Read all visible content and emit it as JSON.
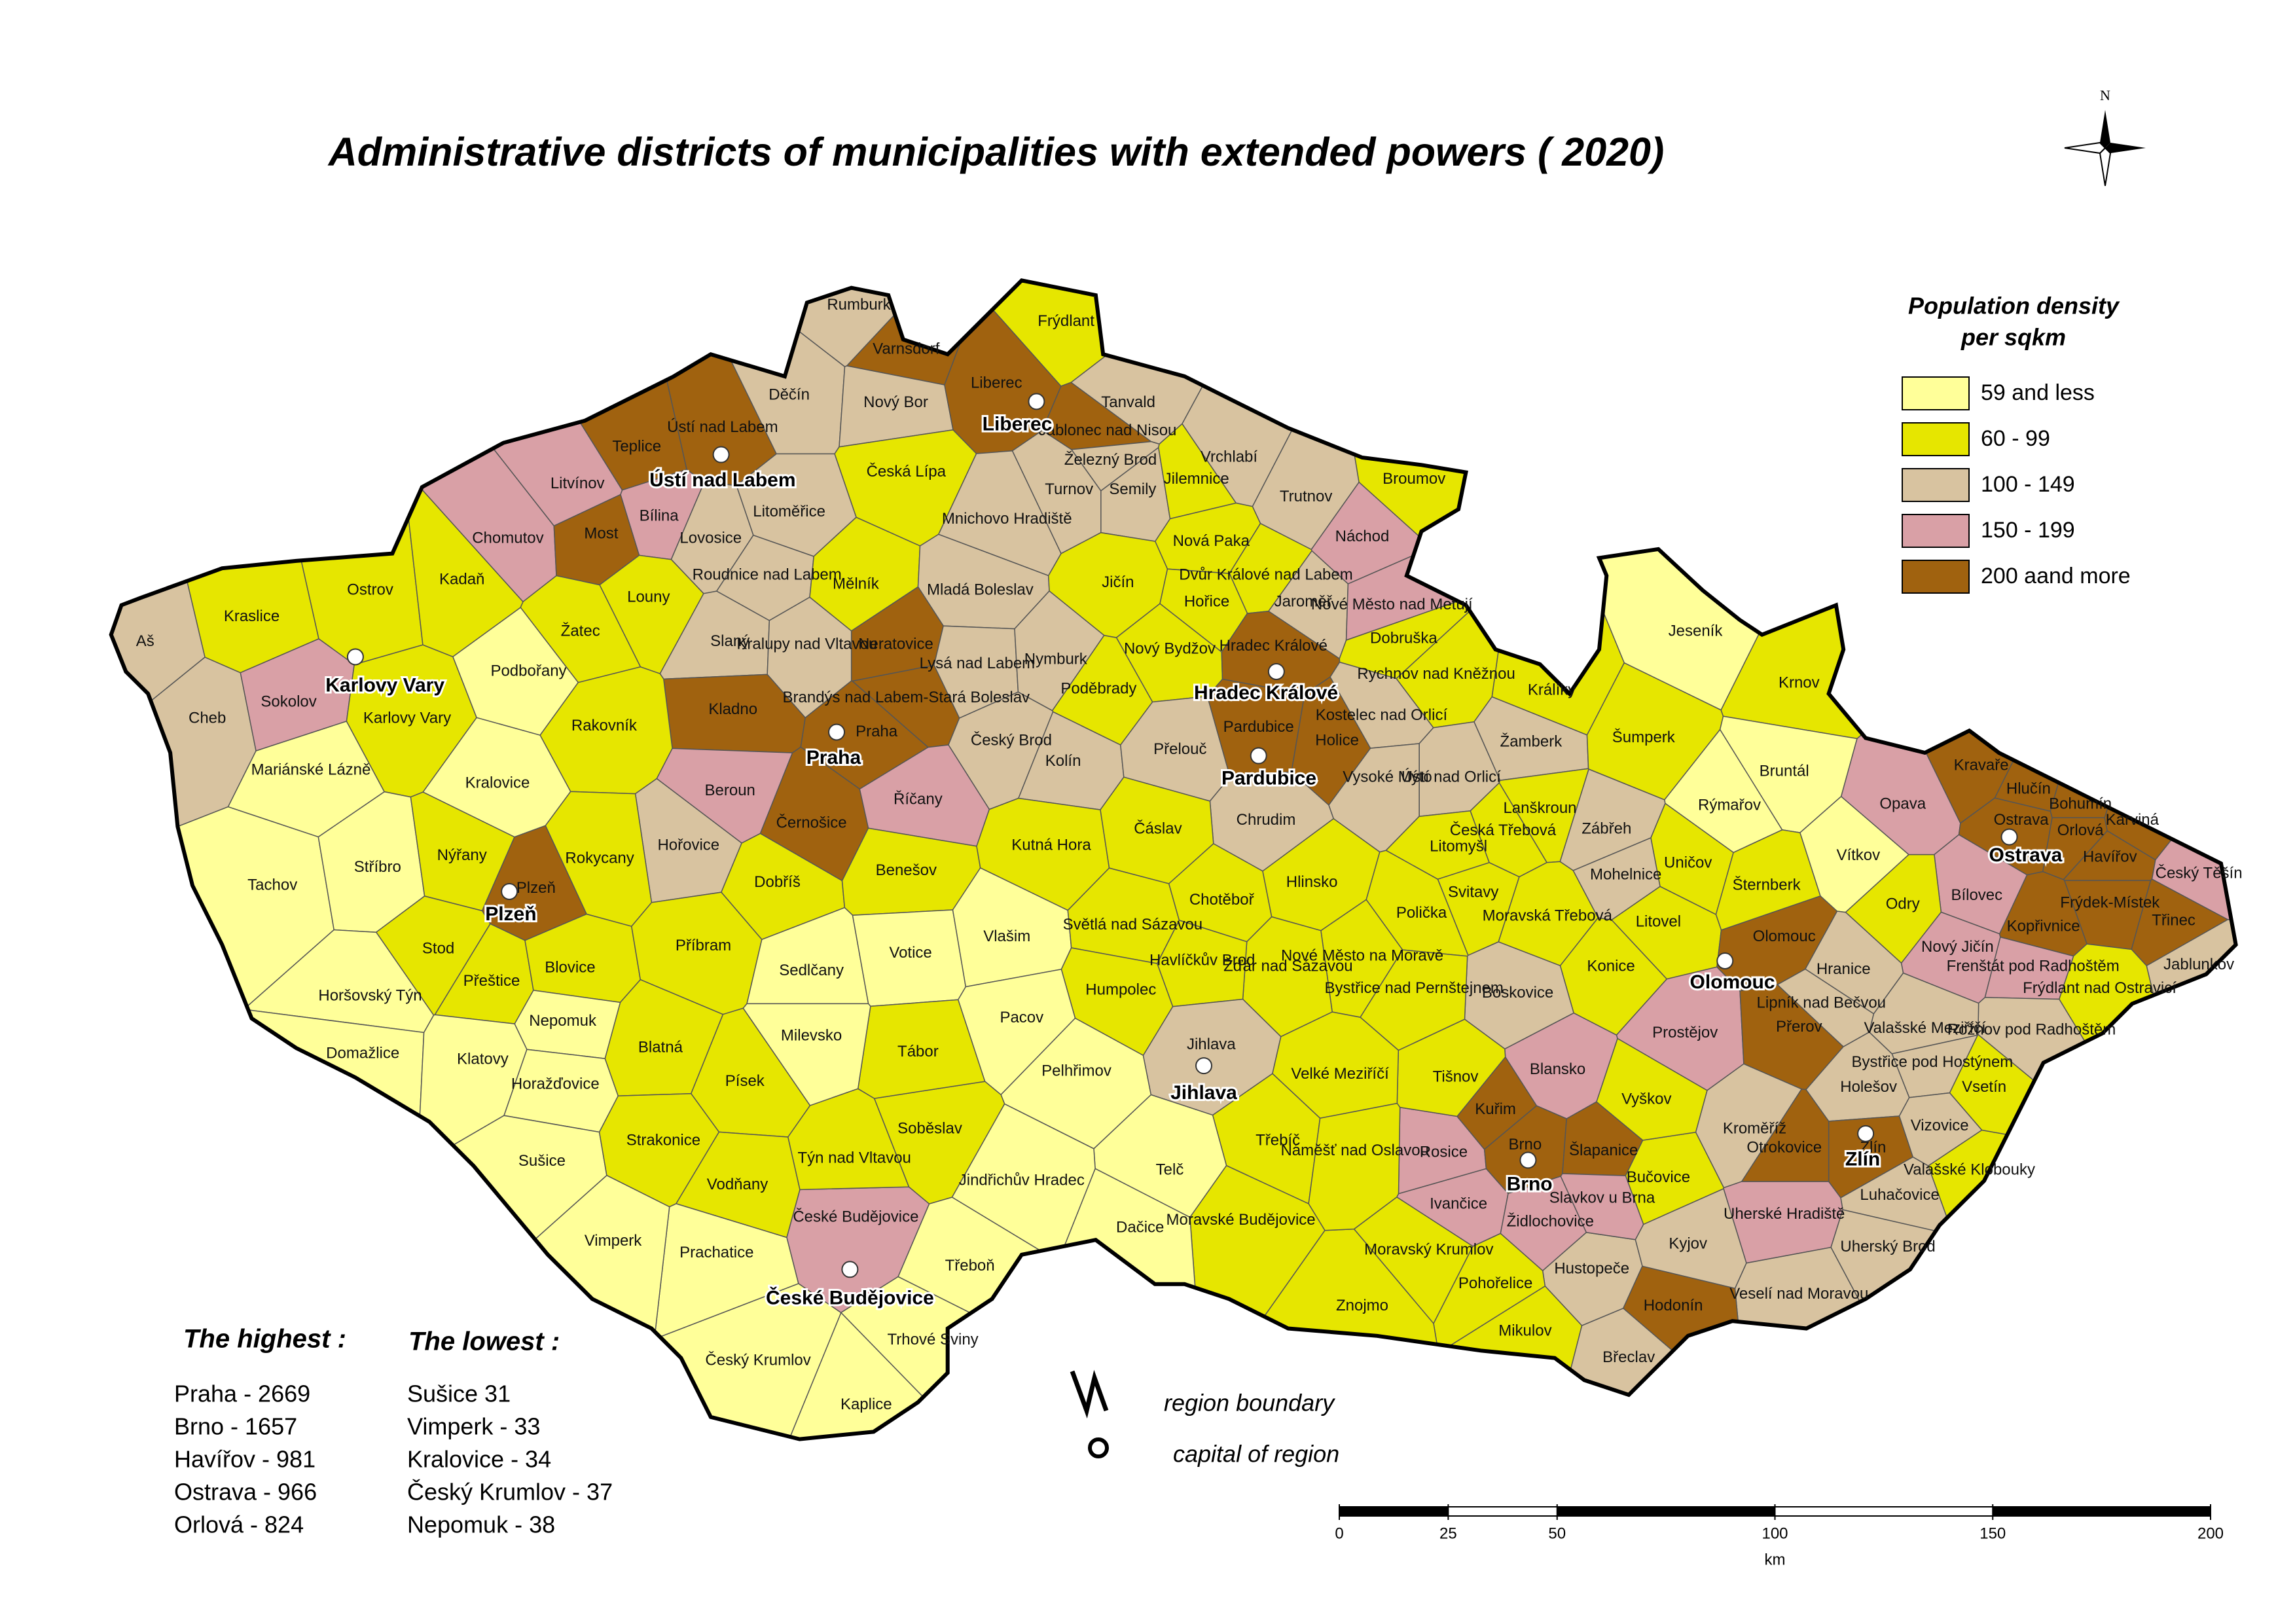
{
  "title": "Administrative districts of municipalities with extended powers ( 2020)",
  "north": "N",
  "legend": {
    "title": [
      "Population density",
      "per sqkm"
    ],
    "items": [
      {
        "label": "59 and less",
        "color": "#ffff99"
      },
      {
        "label": "60 - 99",
        "color": "#e6e600"
      },
      {
        "label": "100 - 149",
        "color": "#d8c3a0"
      },
      {
        "label": "150 - 199",
        "color": "#d9a0a6"
      },
      {
        "label": "200 aand more",
        "color": "#a0620f"
      }
    ]
  },
  "symbols": {
    "boundary": "region boundary",
    "capital": "capital of region"
  },
  "highest": {
    "heading": "The highest :",
    "items": [
      "Praha - 2669",
      "Brno - 1657",
      "Havířov - 981",
      "Ostrava - 966",
      "Orlová - 824"
    ]
  },
  "lowest": {
    "heading": "The lowest :",
    "items": [
      "Sušice  31",
      "Vimperk - 33",
      "Kralovice - 34",
      "Český Krumlov - 37",
      "Nepomuk - 38"
    ]
  },
  "scale_bar": {
    "ticks": [
      0,
      25,
      50,
      100,
      150,
      200
    ],
    "unit": "km"
  },
  "capitals": [
    "Karlovy Vary",
    "Ústí nad Labem",
    "Liberec",
    "Praha",
    "Plzeň",
    "Hradec Králové",
    "Pardubice",
    "Jihlava",
    "České Budějovice",
    "Brno",
    "Olomouc",
    "Zlín",
    "Ostrava"
  ],
  "districts": [
    {
      "name": "Aš",
      "density": "100 - 149"
    },
    {
      "name": "Cheb",
      "density": "100 - 149"
    },
    {
      "name": "Kraslice",
      "density": "60 - 99"
    },
    {
      "name": "Sokolov",
      "density": "150 - 199"
    },
    {
      "name": "Mariánské Lázně",
      "density": "59 and less"
    },
    {
      "name": "Karlovy Vary",
      "density": "60 - 99"
    },
    {
      "name": "Ostrov",
      "density": "60 - 99"
    },
    {
      "name": "Kadaň",
      "density": "60 - 99"
    },
    {
      "name": "Chomutov",
      "density": "150 - 199"
    },
    {
      "name": "Litvínov",
      "density": "150 - 199"
    },
    {
      "name": "Most",
      "density": "200 aand more"
    },
    {
      "name": "Teplice",
      "density": "200 aand more"
    },
    {
      "name": "Bílina",
      "density": "150 - 199"
    },
    {
      "name": "Ústí nad Labem",
      "density": "200 aand more"
    },
    {
      "name": "Děčín",
      "density": "100 - 149"
    },
    {
      "name": "Rumburk",
      "density": "100 - 149"
    },
    {
      "name": "Varnsdorf",
      "density": "200 aand more"
    },
    {
      "name": "Nový Bor",
      "density": "100 - 149"
    },
    {
      "name": "Česká Lípa",
      "density": "60 - 99"
    },
    {
      "name": "Frýdlant",
      "density": "60 - 99"
    },
    {
      "name": "Liberec",
      "density": "200 aand more"
    },
    {
      "name": "Jablonec nad Nisou",
      "density": "200 aand more"
    },
    {
      "name": "Tanvald",
      "density": "100 - 149"
    },
    {
      "name": "Železný Brod",
      "density": "100 - 149"
    },
    {
      "name": "Semily",
      "density": "100 - 149"
    },
    {
      "name": "Turnov",
      "density": "100 - 149"
    },
    {
      "name": "Jilemnice",
      "density": "60 - 99"
    },
    {
      "name": "Vrchlabí",
      "density": "100 - 149"
    },
    {
      "name": "Trutnov",
      "density": "100 - 149"
    },
    {
      "name": "Broumov",
      "density": "60 - 99"
    },
    {
      "name": "Náchod",
      "density": "150 - 199"
    },
    {
      "name": "Mnichovo Hradiště",
      "density": "100 - 149"
    },
    {
      "name": "Litoměřice",
      "density": "100 - 149"
    },
    {
      "name": "Lovosice",
      "density": "100 - 149"
    },
    {
      "name": "Roudnice nad Labem",
      "density": "100 - 149"
    },
    {
      "name": "Louny",
      "density": "60 - 99"
    },
    {
      "name": "Žatec",
      "density": "60 - 99"
    },
    {
      "name": "Podbořany",
      "density": "59 and less"
    },
    {
      "name": "Mělník",
      "density": "60 - 99"
    },
    {
      "name": "Mladá Boleslav",
      "density": "100 - 149"
    },
    {
      "name": "Jičín",
      "density": "60 - 99"
    },
    {
      "name": "Nová Paka",
      "density": "60 - 99"
    },
    {
      "name": "Dvůr Králové nad Labem",
      "density": "60 - 99"
    },
    {
      "name": "Jaroměř",
      "density": "100 - 149"
    },
    {
      "name": "Hořice",
      "density": "60 - 99"
    },
    {
      "name": "Nové Město nad Metují",
      "density": "150 - 199"
    },
    {
      "name": "Dobruška",
      "density": "60 - 99"
    },
    {
      "name": "Rychnov nad Kněžnou",
      "density": "60 - 99"
    },
    {
      "name": "Slaný",
      "density": "100 - 149"
    },
    {
      "name": "Kralupy nad Vltavou",
      "density": "100 - 149"
    },
    {
      "name": "Neratovice",
      "density": "200 aand more"
    },
    {
      "name": "Lysá nad Labem",
      "density": "100 - 149"
    },
    {
      "name": "Nymburk",
      "density": "100 - 149"
    },
    {
      "name": "Nový Bydžov",
      "density": "60 - 99"
    },
    {
      "name": "Hradec Králové",
      "density": "200 aand more"
    },
    {
      "name": "Poděbrady",
      "density": "60 - 99"
    },
    {
      "name": "Kladno",
      "density": "200 aand more"
    },
    {
      "name": "Praha",
      "density": "200 aand more"
    },
    {
      "name": "Brandýs nad Labem-Stará Boleslav",
      "density": "200 aand more"
    },
    {
      "name": "Rakovník",
      "density": "60 - 99"
    },
    {
      "name": "Český Brod",
      "density": "100 - 149"
    },
    {
      "name": "Kolín",
      "density": "100 - 149"
    },
    {
      "name": "Přelouč",
      "density": "100 - 149"
    },
    {
      "name": "Pardubice",
      "density": "200 aand more"
    },
    {
      "name": "Holice",
      "density": "200 aand more"
    },
    {
      "name": "Kostelec nad Orlicí",
      "density": "100 - 149"
    },
    {
      "name": "Žamberk",
      "density": "100 - 149"
    },
    {
      "name": "Králíky",
      "density": "60 - 99"
    },
    {
      "name": "Ústí nad Orlicí",
      "density": "100 - 149"
    },
    {
      "name": "Vysoké Mýto",
      "density": "100 - 149"
    },
    {
      "name": "Chrudim",
      "density": "100 - 149"
    },
    {
      "name": "Beroun",
      "density": "150 - 199"
    },
    {
      "name": "Černošice",
      "density": "200 aand more"
    },
    {
      "name": "Říčany",
      "density": "150 - 199"
    },
    {
      "name": "Hořovice",
      "density": "100 - 149"
    },
    {
      "name": "Kralovice",
      "density": "59 and less"
    },
    {
      "name": "Tachov",
      "density": "59 and less"
    },
    {
      "name": "Stříbro",
      "density": "59 and less"
    },
    {
      "name": "Nýřany",
      "density": "60 - 99"
    },
    {
      "name": "Rokycany",
      "density": "60 - 99"
    },
    {
      "name": "Plzeň",
      "density": "200 aand more"
    },
    {
      "name": "Stod",
      "density": "60 - 99"
    },
    {
      "name": "Přeštice",
      "density": "60 - 99"
    },
    {
      "name": "Blovice",
      "density": "60 - 99"
    },
    {
      "name": "Horšovský Týn",
      "density": "59 and less"
    },
    {
      "name": "Domažlice",
      "density": "59 and less"
    },
    {
      "name": "Klatovy",
      "density": "59 and less"
    },
    {
      "name": "Nepomuk",
      "density": "59 and less"
    },
    {
      "name": "Horažďovice",
      "density": "59 and less"
    },
    {
      "name": "Sušice",
      "density": "59 and less"
    },
    {
      "name": "Dobříš",
      "density": "60 - 99"
    },
    {
      "name": "Benešov",
      "density": "60 - 99"
    },
    {
      "name": "Kutná Hora",
      "density": "60 - 99"
    },
    {
      "name": "Čáslav",
      "density": "60 - 99"
    },
    {
      "name": "Příbram",
      "density": "60 - 99"
    },
    {
      "name": "Sedlčany",
      "density": "59 and less"
    },
    {
      "name": "Votice",
      "density": "59 and less"
    },
    {
      "name": "Vlašim",
      "density": "59 and less"
    },
    {
      "name": "Světlá nad Sázavou",
      "density": "60 - 99"
    },
    {
      "name": "Chotěboř",
      "density": "60 - 99"
    },
    {
      "name": "Hlinsko",
      "density": "60 - 99"
    },
    {
      "name": "Litomyšl",
      "density": "60 - 99"
    },
    {
      "name": "Lanškroun",
      "density": "60 - 99"
    },
    {
      "name": "Česká Třebová",
      "density": "60 - 99"
    },
    {
      "name": "Svitavy",
      "density": "60 - 99"
    },
    {
      "name": "Polička",
      "density": "60 - 99"
    },
    {
      "name": "Moravská Třebová",
      "density": "60 - 99"
    },
    {
      "name": "Zábřeh",
      "density": "100 - 149"
    },
    {
      "name": "Šumperk",
      "density": "60 - 99"
    },
    {
      "name": "Jeseník",
      "density": "59 and less"
    },
    {
      "name": "Krnov",
      "density": "60 - 99"
    },
    {
      "name": "Bruntál",
      "density": "59 and less"
    },
    {
      "name": "Rýmařov",
      "density": "59 and less"
    },
    {
      "name": "Mohelnice",
      "density": "100 - 149"
    },
    {
      "name": "Uničov",
      "density": "60 - 99"
    },
    {
      "name": "Šternberk",
      "density": "60 - 99"
    },
    {
      "name": "Litovel",
      "density": "60 - 99"
    },
    {
      "name": "Konice",
      "density": "60 - 99"
    },
    {
      "name": "Olomouc",
      "density": "200 aand more"
    },
    {
      "name": "Vítkov",
      "density": "59 and less"
    },
    {
      "name": "Opava",
      "density": "150 - 199"
    },
    {
      "name": "Kravaře",
      "density": "200 aand more"
    },
    {
      "name": "Hlučín",
      "density": "200 aand more"
    },
    {
      "name": "Bohumín",
      "density": "200 aand more"
    },
    {
      "name": "Ostrava",
      "density": "200 aand more"
    },
    {
      "name": "Orlová",
      "density": "200 aand more"
    },
    {
      "name": "Karviná",
      "density": "200 aand more"
    },
    {
      "name": "Havířov",
      "density": "200 aand more"
    },
    {
      "name": "Český Těšín",
      "density": "150 - 199"
    },
    {
      "name": "Bílovec",
      "density": "150 - 199"
    },
    {
      "name": "Frýdek-Místek",
      "density": "200 aand more"
    },
    {
      "name": "Třinec",
      "density": "200 aand more"
    },
    {
      "name": "Odry",
      "density": "60 - 99"
    },
    {
      "name": "Nový Jičín",
      "density": "150 - 199"
    },
    {
      "name": "Kopřivnice",
      "density": "200 aand more"
    },
    {
      "name": "Jablunkov",
      "density": "100 - 149"
    },
    {
      "name": "Frenštát pod Radhoštěm",
      "density": "150 - 199"
    },
    {
      "name": "Frýdlant nad Ostravicí",
      "density": "60 - 99"
    },
    {
      "name": "Rožnov pod Radhoštěm",
      "density": "100 - 149"
    },
    {
      "name": "Hranice",
      "density": "100 - 149"
    },
    {
      "name": "Lipník nad Bečvou",
      "density": "100 - 149"
    },
    {
      "name": "Prostějov",
      "density": "150 - 199"
    },
    {
      "name": "Přerov",
      "density": "200 aand more"
    },
    {
      "name": "Valašské Meziříčí",
      "density": "100 - 149"
    },
    {
      "name": "Bystřice pod Hostýnem",
      "density": "100 - 149"
    },
    {
      "name": "Vsetín",
      "density": "60 - 99"
    },
    {
      "name": "Holešov",
      "density": "100 - 149"
    },
    {
      "name": "Zlín",
      "density": "200 aand more"
    },
    {
      "name": "Vizovice",
      "density": "100 - 149"
    },
    {
      "name": "Kroměříž",
      "density": "100 - 149"
    },
    {
      "name": "Otrokovice",
      "density": "200 aand more"
    },
    {
      "name": "Luhačovice",
      "density": "100 - 149"
    },
    {
      "name": "Valašské Klobouky",
      "density": "60 - 99"
    },
    {
      "name": "Uherské Hradiště",
      "density": "150 - 199"
    },
    {
      "name": "Uherský Brod",
      "density": "100 - 149"
    },
    {
      "name": "Veselí nad Moravou",
      "density": "100 - 149"
    },
    {
      "name": "Hodonín",
      "density": "200 aand more"
    },
    {
      "name": "Kyjov",
      "density": "100 - 149"
    },
    {
      "name": "Břeclav",
      "density": "100 - 149"
    },
    {
      "name": "Hustopeče",
      "density": "100 - 149"
    },
    {
      "name": "Mikulov",
      "density": "60 - 99"
    },
    {
      "name": "Pohořelice",
      "density": "60 - 99"
    },
    {
      "name": "Znojmo",
      "density": "60 - 99"
    },
    {
      "name": "Moravský Krumlov",
      "density": "60 - 99"
    },
    {
      "name": "Ivančice",
      "density": "150 - 199"
    },
    {
      "name": "Rosice",
      "density": "150 - 199"
    },
    {
      "name": "Kuřim",
      "density": "200 aand more"
    },
    {
      "name": "Brno",
      "density": "200 aand more"
    },
    {
      "name": "Šlapanice",
      "density": "200 aand more"
    },
    {
      "name": "Slavkov u Brna",
      "density": "150 - 199"
    },
    {
      "name": "Bučovice",
      "density": "60 - 99"
    },
    {
      "name": "Vyškov",
      "density": "60 - 99"
    },
    {
      "name": "Židlochovice",
      "density": "150 - 199"
    },
    {
      "name": "Blansko",
      "density": "150 - 199"
    },
    {
      "name": "Boskovice",
      "density": "100 - 149"
    },
    {
      "name": "Tišnov",
      "density": "60 - 99"
    },
    {
      "name": "Bystřice nad Pernštejnem",
      "density": "60 - 99"
    },
    {
      "name": "Nové Město na Moravě",
      "density": "60 - 99"
    },
    {
      "name": "Žďár nad Sázavou",
      "density": "60 - 99"
    },
    {
      "name": "Havlíčkův Brod",
      "density": "60 - 99"
    },
    {
      "name": "Humpolec",
      "density": "60 - 99"
    },
    {
      "name": "Pacov",
      "density": "59 and less"
    },
    {
      "name": "Pelhřimov",
      "density": "59 and less"
    },
    {
      "name": "Jihlava",
      "density": "100 - 149"
    },
    {
      "name": "Velké Meziříčí",
      "density": "60 - 99"
    },
    {
      "name": "Třebíč",
      "density": "60 - 99"
    },
    {
      "name": "Náměšť nad Oslavou",
      "density": "60 - 99"
    },
    {
      "name": "Telč",
      "density": "59 and less"
    },
    {
      "name": "Moravské Budějovice",
      "density": "60 - 99"
    },
    {
      "name": "Dačice",
      "density": "59 and less"
    },
    {
      "name": "Jindřichův Hradec",
      "density": "59 and less"
    },
    {
      "name": "Třeboň",
      "density": "59 and less"
    },
    {
      "name": "Trhové Sviny",
      "density": "59 and less"
    },
    {
      "name": "Kaplice",
      "density": "59 and less"
    },
    {
      "name": "Český Krumlov",
      "density": "59 and less"
    },
    {
      "name": "České Budějovice",
      "density": "150 - 199"
    },
    {
      "name": "Týn nad Vltavou",
      "density": "60 - 99"
    },
    {
      "name": "Soběslav",
      "density": "60 - 99"
    },
    {
      "name": "Tábor",
      "density": "60 - 99"
    },
    {
      "name": "Milevsko",
      "density": "59 and less"
    },
    {
      "name": "Písek",
      "density": "60 - 99"
    },
    {
      "name": "Blatná",
      "density": "60 - 99"
    },
    {
      "name": "Strakonice",
      "density": "60 - 99"
    },
    {
      "name": "Vodňany",
      "density": "60 - 99"
    },
    {
      "name": "Prachatice",
      "density": "59 and less"
    },
    {
      "name": "Vimperk",
      "density": "59 and less"
    }
  ]
}
